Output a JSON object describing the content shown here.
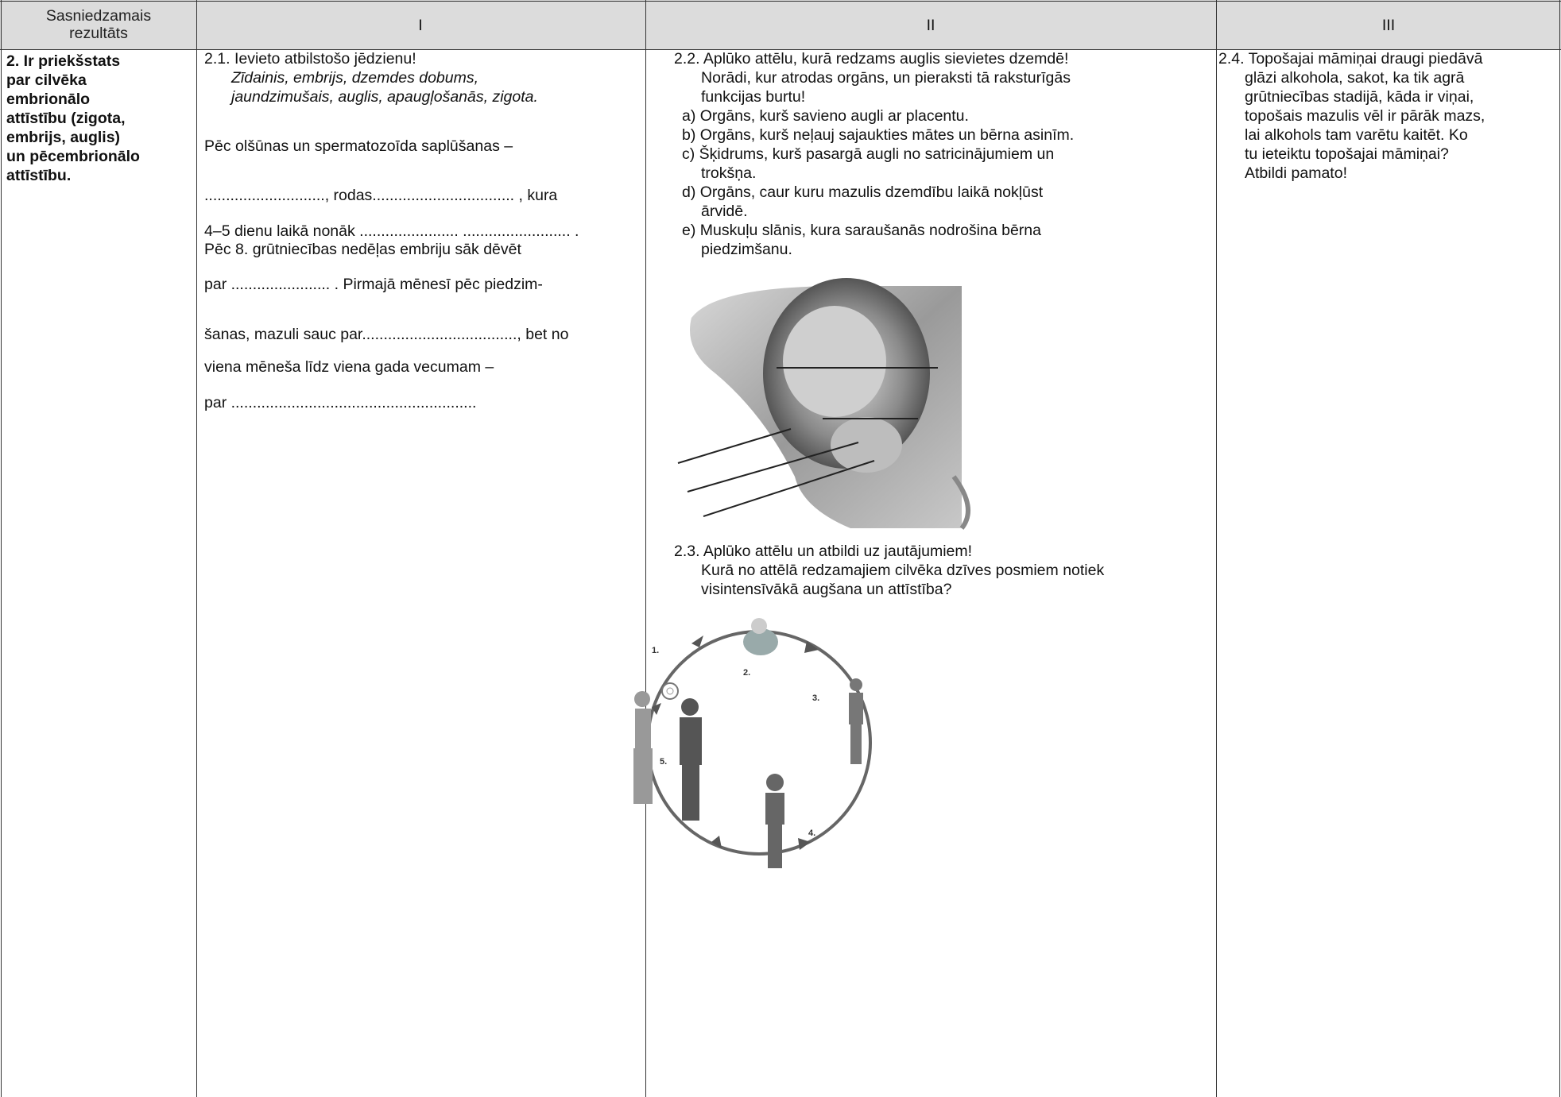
{
  "table": {
    "header": [
      "Sasniedzamais rezultāts",
      "I",
      "II",
      "III"
    ],
    "col1": [
      "2. Ir priekšstats",
      "par cilvēka",
      "embrionālo",
      "attīstību (zigota,",
      "embrijs, auglis)",
      "un pēcembrionālo",
      "attīstību."
    ],
    "col2": {
      "task": "2.1. Ievieto atbilstošo jēdzienu!",
      "terms": [
        "Zīdainis, embrijs, dzemdes dobums,",
        "jaundzimušais, auglis, apaugļošanās, zigota."
      ],
      "text": [
        "Pēc olšūnas un spermatozoīda saplūšanas –",
        "............................, rodas................................. , kura",
        "4–5 dienu laikā nonāk ....................... ......................... .",
        "Pēc 8. grūtniecības nedēļas embriju sāk dēvēt",
        "par ....................... . Pirmajā mēnesī pēc piedzim-",
        "šanas, mazuli sauc par...................................., bet no",
        "viena mēneša līdz viena gada vecumam –",
        "par ........................................................."
      ]
    },
    "col3": {
      "task_2_2": [
        "2.2. Aplūko attēlu, kurā redzams auglis sievietes dzemdē!",
        "Norādi, kur atrodas orgāns, un pieraksti tā raksturīgās",
        "funkcijas burtu!",
        "a) Orgāns, kurš savieno augli ar placentu.",
        "b) Orgāns, kurš neļauj sajaukties mātes un bērna asinīm.",
        "c) Šķidrums, kurš pasargā augli no satricinājumiem un",
        "trokšņa.",
        "d) Orgāns, caur kuru mazulis dzemdību laikā nokļūst",
        "ārvidē.",
        "e) Muskuļu slānis, kura saraušanās nodrošina bērna",
        "piedzimšanu."
      ],
      "task_2_3": [
        "2.3. Aplūko attēlu un atbildi uz jautājumiem!",
        "Kurā no attēlā redzamajiem cilvēka dzīves posmiem notiek",
        "visintensīvākā augšana un attīstība?"
      ],
      "cycle_labels": [
        "1.",
        "2.",
        "3.",
        "4.",
        "5."
      ]
    },
    "col4": [
      "2.4. Topošajai māmiņai draugi piedāvā",
      "glāzi alkohola, sakot, ka tik agrā",
      "grūtniecības stadijā, kāda ir viņai,",
      "topošais mazulis vēl ir pārāk mazs,",
      "lai alkohols tam varētu kaitēt. Ko",
      "tu ieteiktu topošajai māmiņai?",
      "Atbildi pamato!"
    ]
  }
}
